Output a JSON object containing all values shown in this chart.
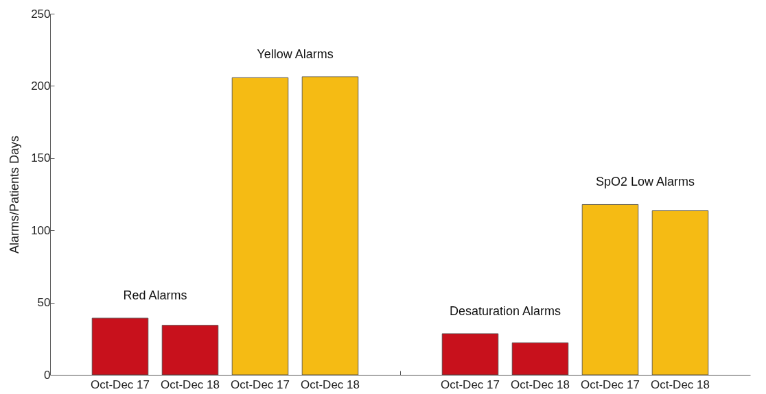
{
  "chart_data": {
    "type": "bar",
    "ylabel": "Alarms/Patients Days",
    "categories": [
      "Oct-Dec 17",
      "Oct-Dec 18",
      "Oct-Dec 17",
      "Oct-Dec 18",
      null,
      "Oct-Dec 17",
      "Oct-Dec 18",
      "Oct-Dec 17",
      "Oct-Dec 18"
    ],
    "values": [
      39.3,
      34.3,
      205.7,
      206.4,
      null,
      28.5,
      22.2,
      117.9,
      113.6
    ],
    "colors": [
      "#c8111c",
      "#c8111c",
      "#f5bb14",
      "#f5bb14",
      null,
      "#c8111c",
      "#c8111c",
      "#f5bb14",
      "#f5bb14"
    ],
    "ylim": [
      0,
      250
    ],
    "yticks": [
      0,
      50,
      100,
      150,
      200,
      250
    ],
    "annotations": [
      "Red Alarms",
      "Yellow Alarms",
      "Desaturation Alarms",
      "SpO2 Low Alarms"
    ]
  }
}
